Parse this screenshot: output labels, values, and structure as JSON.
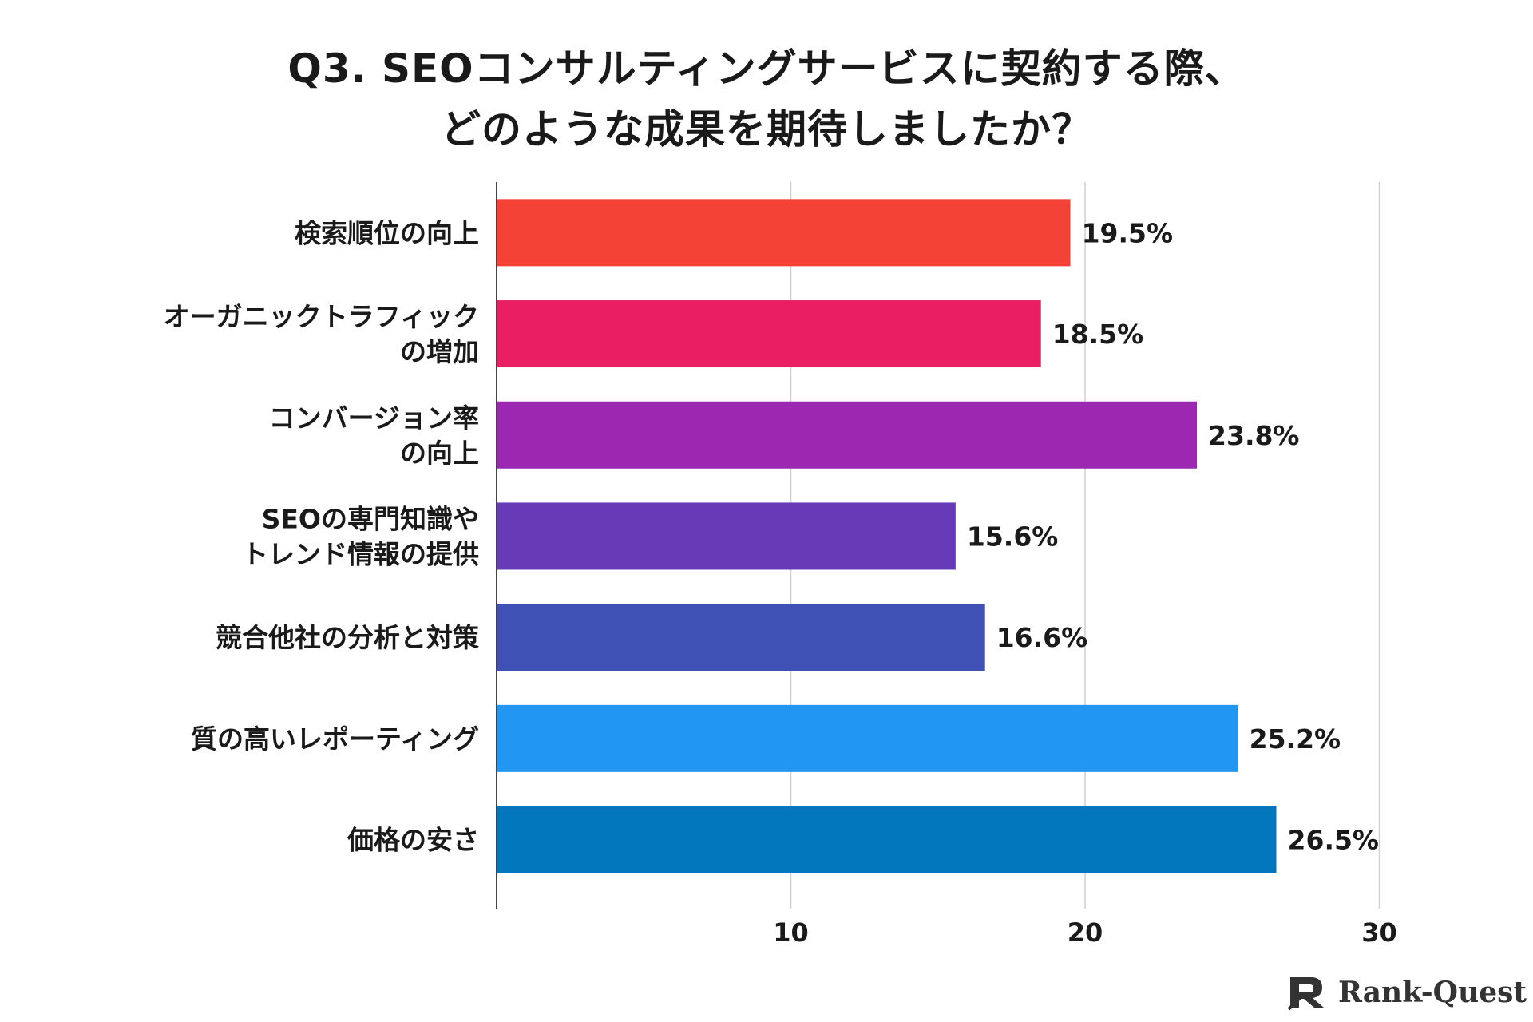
{
  "title": {
    "line1": "Q3. SEOコンサルティングサービスに契約する際、",
    "line2": "どのような成果を期待しましたか？"
  },
  "chart_data": {
    "type": "bar",
    "orientation": "horizontal",
    "categories": [
      [
        "検索順位の向上"
      ],
      [
        "オーガニックトラフィック",
        "の増加"
      ],
      [
        "コンバージョン率",
        "の向上"
      ],
      [
        "SEOの専門知識や",
        "トレンド情報の提供"
      ],
      [
        "競合他社の分析と対策"
      ],
      [
        "質の高いレポーティング"
      ],
      [
        "価格の安さ"
      ]
    ],
    "values": [
      19.5,
      18.5,
      23.8,
      15.6,
      16.6,
      25.2,
      26.5
    ],
    "value_labels": [
      "19.5%",
      "18.5%",
      "23.8%",
      "15.6%",
      "16.6%",
      "25.2%",
      "26.5%"
    ],
    "colors": [
      "#f44336",
      "#e91e63",
      "#9c27b0",
      "#673ab7",
      "#3f51b5",
      "#2196f3",
      "#0277bd"
    ],
    "xlim": [
      0,
      30
    ],
    "xticks": [
      10,
      20,
      30
    ],
    "xtick_labels": [
      "10",
      "20",
      "30"
    ],
    "grid": true
  },
  "brand": {
    "name": "Rank-Quest",
    "logo_icon": "rank-quest-logo-icon",
    "color": "#333333"
  }
}
